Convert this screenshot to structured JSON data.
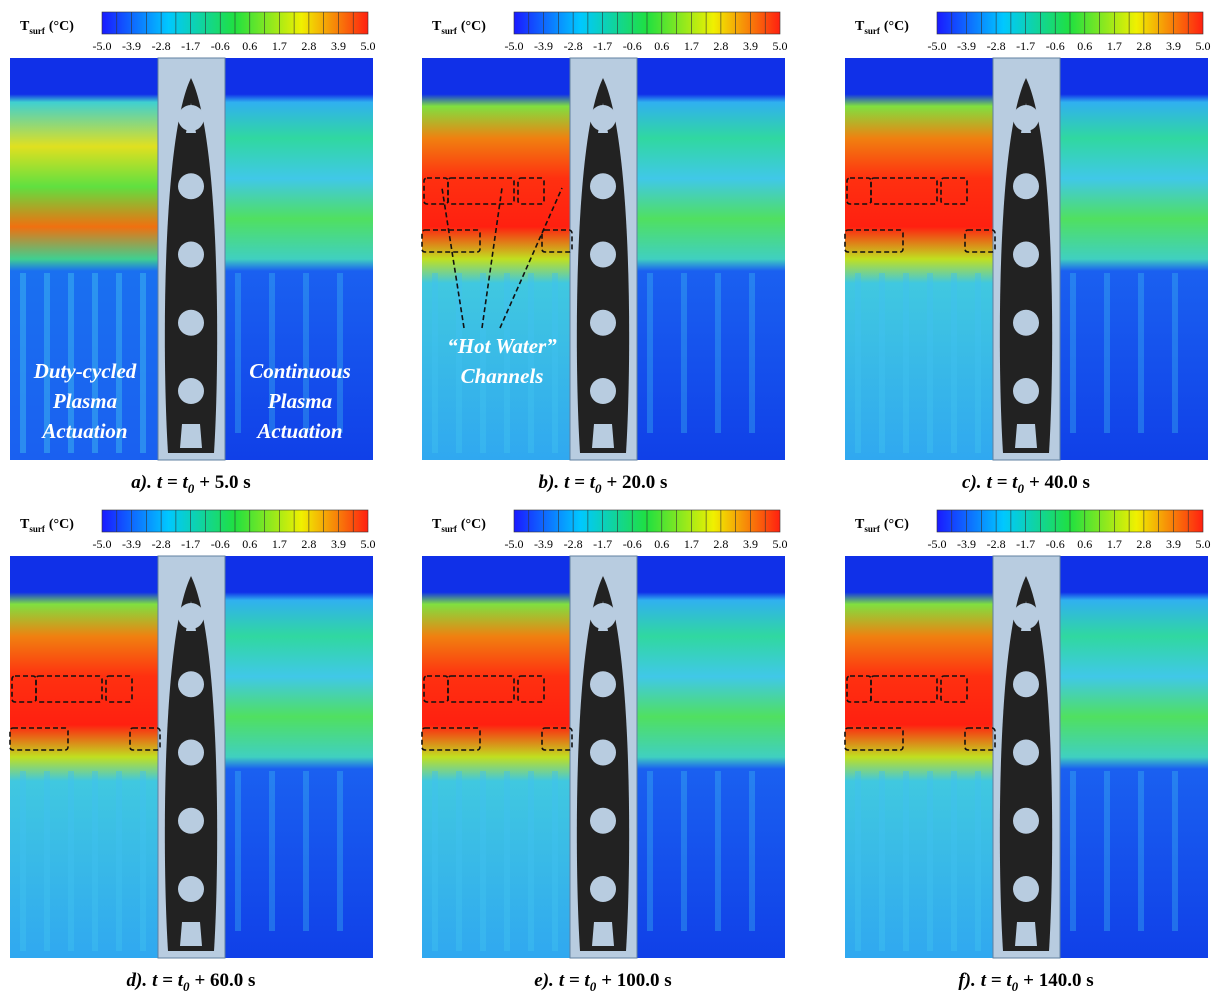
{
  "colorbar": {
    "title": {
      "symbol": "T",
      "subscript": "surf",
      "unit": "(°C)"
    },
    "ticks": [
      "-5.0",
      "-3.9",
      "-2.8",
      "-1.7",
      "-0.6",
      "0.6",
      "1.7",
      "2.8",
      "3.9",
      "5.0"
    ]
  },
  "panels": [
    {
      "caption": {
        "label": "a).",
        "lhs": "t = t",
        "sub": "0",
        "rhs": "+ 5.0 s"
      },
      "annotations": [
        {
          "lines": [
            "Duty-cycled",
            "Plasma",
            "Actuation"
          ]
        },
        {
          "lines": [
            "Continuous",
            "Plasma",
            "Actuation"
          ]
        }
      ]
    },
    {
      "caption": {
        "label": "b).",
        "lhs": "t = t",
        "sub": "0",
        "rhs": "+ 20.0 s"
      },
      "annotations": [
        {
          "lines": [
            "“Hot Water”",
            "Channels"
          ]
        }
      ]
    },
    {
      "caption": {
        "label": "c).",
        "lhs": "t = t",
        "sub": "0",
        "rhs": "+ 40.0 s"
      }
    },
    {
      "caption": {
        "label": "d).",
        "lhs": "t = t",
        "sub": "0",
        "rhs": "+ 60.0 s"
      }
    },
    {
      "caption": {
        "label": "e).",
        "lhs": "t = t",
        "sub": "0",
        "rhs": "+ 100.0 s"
      }
    },
    {
      "caption": {
        "label": "f).",
        "lhs": "t = t",
        "sub": "0",
        "rhs": "+ 140.0 s"
      }
    }
  ]
}
